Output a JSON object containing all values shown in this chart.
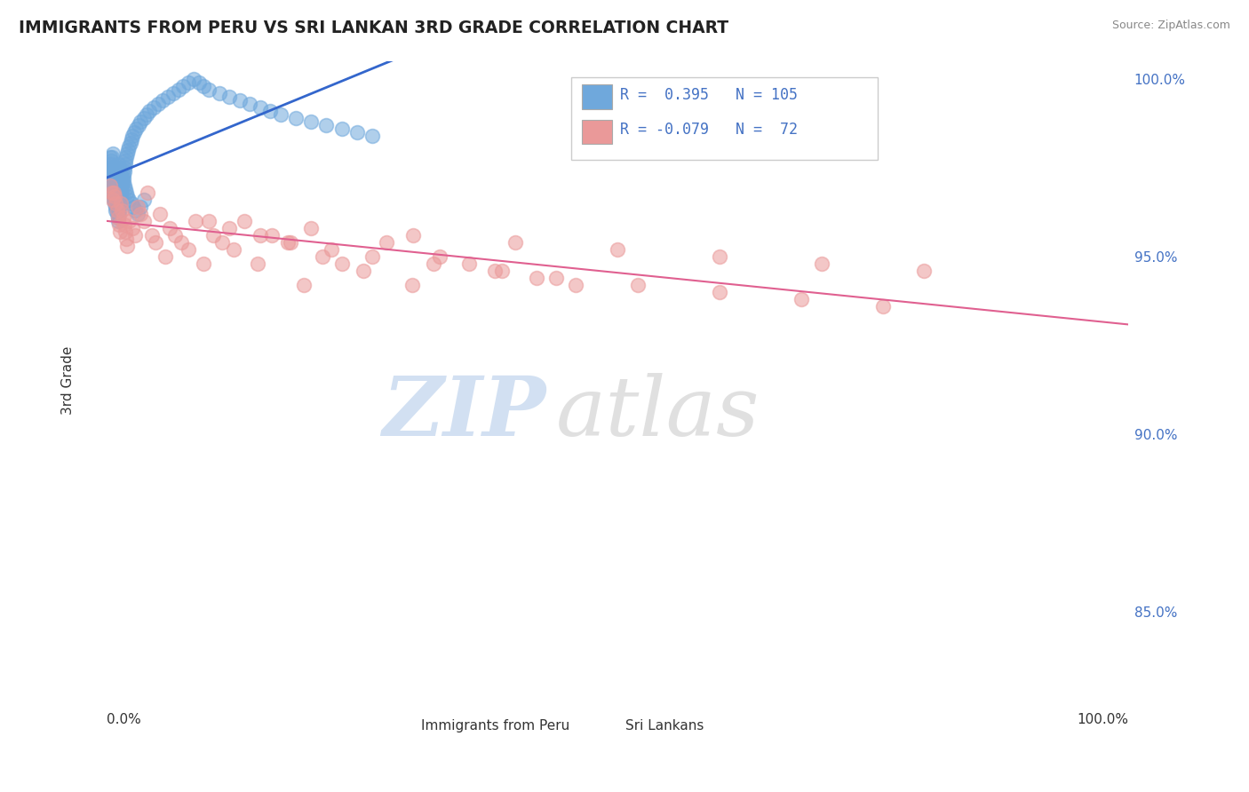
{
  "title": "IMMIGRANTS FROM PERU VS SRI LANKAN 3RD GRADE CORRELATION CHART",
  "source_text": "Source: ZipAtlas.com",
  "ylabel": "3rd Grade",
  "xlim": [
    0.0,
    1.0
  ],
  "ylim": [
    0.825,
    1.005
  ],
  "ytick_vals": [
    0.85,
    0.9,
    0.95,
    1.0
  ],
  "ytick_labels": [
    "85.0%",
    "90.0%",
    "95.0%",
    "100.0%"
  ],
  "legend_r1": "R =  0.395",
  "legend_n1": "N = 105",
  "legend_r2": "R = -0.079",
  "legend_n2": "N =  72",
  "legend_label1": "Immigrants from Peru",
  "legend_label2": "Sri Lankans",
  "blue_color": "#6fa8dc",
  "pink_color": "#ea9999",
  "blue_line_color": "#3366cc",
  "pink_line_color": "#e06090",
  "watermark_zip": "ZIP",
  "watermark_atlas": "atlas",
  "blue_scatter_x": [
    0.002,
    0.003,
    0.003,
    0.004,
    0.004,
    0.005,
    0.005,
    0.005,
    0.006,
    0.006,
    0.006,
    0.007,
    0.007,
    0.007,
    0.008,
    0.008,
    0.008,
    0.009,
    0.009,
    0.009,
    0.01,
    0.01,
    0.01,
    0.011,
    0.011,
    0.011,
    0.012,
    0.012,
    0.012,
    0.013,
    0.013,
    0.014,
    0.014,
    0.015,
    0.015,
    0.016,
    0.016,
    0.017,
    0.017,
    0.018,
    0.018,
    0.019,
    0.02,
    0.021,
    0.022,
    0.023,
    0.024,
    0.025,
    0.027,
    0.029,
    0.031,
    0.033,
    0.036,
    0.039,
    0.042,
    0.046,
    0.05,
    0.055,
    0.06,
    0.065,
    0.07,
    0.075,
    0.08,
    0.085,
    0.09,
    0.095,
    0.1,
    0.11,
    0.12,
    0.13,
    0.14,
    0.15,
    0.16,
    0.17,
    0.185,
    0.2,
    0.215,
    0.23,
    0.245,
    0.26,
    0.003,
    0.004,
    0.005,
    0.006,
    0.007,
    0.008,
    0.009,
    0.01,
    0.011,
    0.012,
    0.013,
    0.014,
    0.015,
    0.016,
    0.017,
    0.018,
    0.019,
    0.02,
    0.022,
    0.024,
    0.026,
    0.028,
    0.03,
    0.033,
    0.036
  ],
  "blue_scatter_y": [
    0.975,
    0.972,
    0.978,
    0.97,
    0.973,
    0.968,
    0.975,
    0.971,
    0.974,
    0.969,
    0.972,
    0.967,
    0.97,
    0.966,
    0.968,
    0.965,
    0.967,
    0.964,
    0.966,
    0.963,
    0.965,
    0.962,
    0.964,
    0.963,
    0.961,
    0.96,
    0.962,
    0.963,
    0.964,
    0.965,
    0.966,
    0.967,
    0.968,
    0.97,
    0.971,
    0.972,
    0.973,
    0.974,
    0.975,
    0.976,
    0.977,
    0.978,
    0.979,
    0.98,
    0.981,
    0.982,
    0.983,
    0.984,
    0.985,
    0.986,
    0.987,
    0.988,
    0.989,
    0.99,
    0.991,
    0.992,
    0.993,
    0.994,
    0.995,
    0.996,
    0.997,
    0.998,
    0.999,
    1.0,
    0.999,
    0.998,
    0.997,
    0.996,
    0.995,
    0.994,
    0.993,
    0.992,
    0.991,
    0.99,
    0.989,
    0.988,
    0.987,
    0.986,
    0.985,
    0.984,
    0.976,
    0.977,
    0.978,
    0.979,
    0.975,
    0.974,
    0.973,
    0.972,
    0.976,
    0.975,
    0.974,
    0.973,
    0.972,
    0.971,
    0.97,
    0.969,
    0.968,
    0.967,
    0.966,
    0.965,
    0.964,
    0.963,
    0.962,
    0.964,
    0.966
  ],
  "pink_scatter_x": [
    0.003,
    0.005,
    0.006,
    0.007,
    0.008,
    0.009,
    0.01,
    0.011,
    0.012,
    0.013,
    0.014,
    0.015,
    0.016,
    0.017,
    0.018,
    0.019,
    0.02,
    0.022,
    0.025,
    0.028,
    0.03,
    0.033,
    0.036,
    0.04,
    0.044,
    0.048,
    0.052,
    0.057,
    0.062,
    0.067,
    0.073,
    0.08,
    0.087,
    0.095,
    0.104,
    0.113,
    0.124,
    0.135,
    0.148,
    0.162,
    0.177,
    0.193,
    0.211,
    0.23,
    0.251,
    0.274,
    0.299,
    0.326,
    0.355,
    0.387,
    0.421,
    0.459,
    0.1,
    0.2,
    0.3,
    0.4,
    0.5,
    0.6,
    0.7,
    0.8,
    0.12,
    0.15,
    0.18,
    0.22,
    0.26,
    0.32,
    0.38,
    0.44,
    0.52,
    0.6,
    0.68,
    0.76
  ],
  "pink_scatter_y": [
    0.97,
    0.968,
    0.966,
    0.968,
    0.967,
    0.965,
    0.963,
    0.961,
    0.959,
    0.957,
    0.965,
    0.963,
    0.961,
    0.959,
    0.957,
    0.955,
    0.953,
    0.96,
    0.958,
    0.956,
    0.964,
    0.962,
    0.96,
    0.968,
    0.956,
    0.954,
    0.962,
    0.95,
    0.958,
    0.956,
    0.954,
    0.952,
    0.96,
    0.948,
    0.956,
    0.954,
    0.952,
    0.96,
    0.948,
    0.956,
    0.954,
    0.942,
    0.95,
    0.948,
    0.946,
    0.954,
    0.942,
    0.95,
    0.948,
    0.946,
    0.944,
    0.942,
    0.96,
    0.958,
    0.956,
    0.954,
    0.952,
    0.95,
    0.948,
    0.946,
    0.958,
    0.956,
    0.954,
    0.952,
    0.95,
    0.948,
    0.946,
    0.944,
    0.942,
    0.94,
    0.938,
    0.936
  ]
}
